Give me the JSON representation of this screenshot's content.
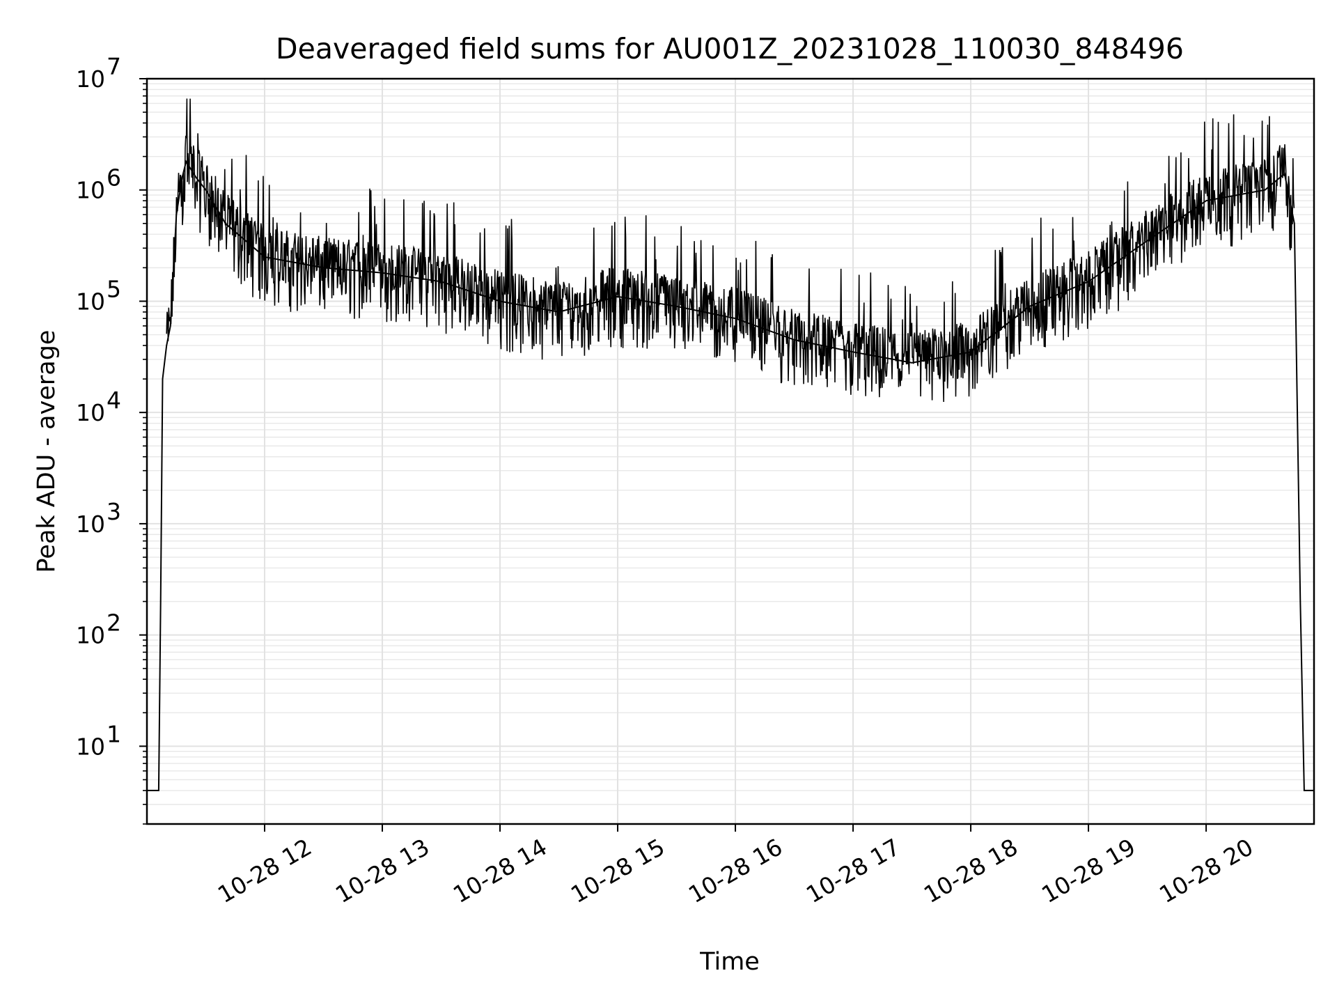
{
  "chart_data": {
    "type": "line",
    "title": "Deaveraged field sums for AU001Z_20231028_110030_848496",
    "xlabel": "Time",
    "ylabel": "Peak ADU - average",
    "y_scale": "log",
    "ylim": [
      2,
      10000000
    ],
    "xlim": [
      "2023-10-28 11:00",
      "2023-10-28 20:55"
    ],
    "grid": true,
    "line_color": "#000000",
    "x_ticks": [
      {
        "at": "2023-10-28 12:00",
        "label": "10-28 12"
      },
      {
        "at": "2023-10-28 13:00",
        "label": "10-28 13"
      },
      {
        "at": "2023-10-28 14:00",
        "label": "10-28 14"
      },
      {
        "at": "2023-10-28 15:00",
        "label": "10-28 15"
      },
      {
        "at": "2023-10-28 16:00",
        "label": "10-28 16"
      },
      {
        "at": "2023-10-28 17:00",
        "label": "10-28 17"
      },
      {
        "at": "2023-10-28 18:00",
        "label": "10-28 18"
      },
      {
        "at": "2023-10-28 19:00",
        "label": "10-28 19"
      },
      {
        "at": "2023-10-28 20:00",
        "label": "10-28 20"
      }
    ],
    "y_ticks": [
      {
        "value": 10,
        "base": "10",
        "exp": "1"
      },
      {
        "value": 100,
        "base": "10",
        "exp": "2"
      },
      {
        "value": 1000,
        "base": "10",
        "exp": "3"
      },
      {
        "value": 10000,
        "base": "10",
        "exp": "4"
      },
      {
        "value": 100000,
        "base": "10",
        "exp": "5"
      },
      {
        "value": 1000000,
        "base": "10",
        "exp": "6"
      },
      {
        "value": 10000000,
        "base": "10",
        "exp": "7"
      }
    ],
    "series": [
      {
        "x": [
          "2023-10-28 11:00",
          "2023-10-28 11:06",
          "2023-10-28 11:07",
          "2023-10-28 11:08",
          "2023-10-28 11:10",
          "2023-10-28 11:12",
          "2023-10-28 11:15",
          "2023-10-28 11:18",
          "2023-10-28 11:20",
          "2023-10-28 11:25",
          "2023-10-28 11:30",
          "2023-10-28 11:40",
          "2023-10-28 12:00",
          "2023-10-28 12:30",
          "2023-10-28 13:00",
          "2023-10-28 13:30",
          "2023-10-28 14:00",
          "2023-10-28 14:30",
          "2023-10-28 15:00",
          "2023-10-28 15:30",
          "2023-10-28 16:00",
          "2023-10-28 16:30",
          "2023-10-28 17:00",
          "2023-10-28 17:30",
          "2023-10-28 18:00",
          "2023-10-28 18:30",
          "2023-10-28 19:00",
          "2023-10-28 19:30",
          "2023-10-28 20:00",
          "2023-10-28 20:30",
          "2023-10-28 20:40",
          "2023-10-28 20:45",
          "2023-10-28 20:48",
          "2023-10-28 20:50",
          "2023-10-28 20:55"
        ],
        "y": [
          4,
          4,
          200,
          20000,
          40000,
          60000,
          600000,
          1300000,
          1800000,
          1300000,
          1000000,
          500000,
          250000,
          200000,
          180000,
          150000,
          100000,
          80000,
          110000,
          90000,
          70000,
          45000,
          35000,
          28000,
          35000,
          90000,
          150000,
          350000,
          800000,
          1000000,
          1400000,
          500000,
          200,
          4,
          4
        ]
      }
    ]
  }
}
